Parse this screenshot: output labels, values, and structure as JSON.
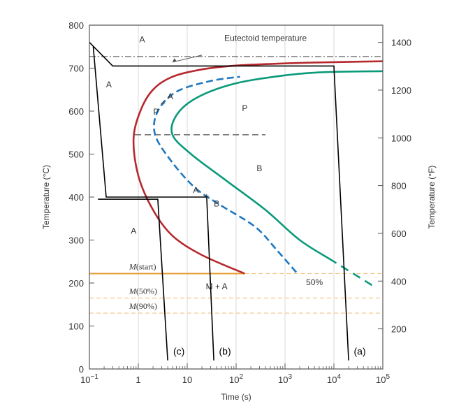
{
  "chart_data": {
    "type": "line",
    "xlabel": "Time (s)",
    "ylabel_left": "Temperature (°C)",
    "ylabel_right": "Temperature (°F)",
    "x_scale": "log",
    "xlim": [
      0.1,
      100000
    ],
    "ylim": [
      0,
      800
    ],
    "x_ticks": [
      {
        "value": 0.1,
        "base": "10",
        "exp": "−1"
      },
      {
        "value": 1,
        "base": "1",
        "exp": ""
      },
      {
        "value": 10,
        "base": "10",
        "exp": ""
      },
      {
        "value": 100,
        "base": "10",
        "exp": "2"
      },
      {
        "value": 1000,
        "base": "10",
        "exp": "3"
      },
      {
        "value": 10000,
        "base": "10",
        "exp": "4"
      },
      {
        "value": 100000,
        "base": "10",
        "exp": "5"
      }
    ],
    "y_ticks_left": [
      0,
      100,
      200,
      300,
      400,
      500,
      600,
      700,
      800
    ],
    "y_ticks_right_F": [
      200,
      400,
      600,
      800,
      1000,
      1200,
      1400
    ],
    "eutectoid": {
      "label": "Eutectoid temperature",
      "temp_c": 727
    },
    "series": [
      {
        "id": "start",
        "color": "#b5292f",
        "style": "solid",
        "points": [
          [
            150,
            222
          ],
          [
            20,
            265
          ],
          [
            5,
            310
          ],
          [
            2,
            370
          ],
          [
            1,
            450
          ],
          [
            0.8,
            535
          ],
          [
            1.1,
            600
          ],
          [
            2,
            650
          ],
          [
            5,
            680
          ],
          [
            20,
            697
          ],
          [
            100,
            706
          ],
          [
            1000,
            711
          ],
          [
            10000,
            714
          ],
          [
            100000,
            716
          ]
        ]
      },
      {
        "id": "fifty",
        "color": "#1f78c1",
        "style": "dashed",
        "points": [
          [
            1700,
            225
          ],
          [
            700,
            275
          ],
          [
            250,
            330
          ],
          [
            50,
            380
          ],
          [
            15,
            420
          ],
          [
            5,
            480
          ],
          [
            2.2,
            545
          ],
          [
            2.5,
            600
          ],
          [
            6,
            645
          ],
          [
            30,
            670
          ],
          [
            120,
            680
          ]
        ]
      },
      {
        "id": "finish",
        "color": "#0a9a7a",
        "style": "solid",
        "points": [
          [
            60000,
            195
          ],
          [
            10000,
            250
          ],
          [
            2000,
            300
          ],
          [
            400,
            370
          ],
          [
            60,
            440
          ],
          [
            12,
            500
          ],
          [
            5,
            545
          ],
          [
            6,
            590
          ],
          [
            15,
            630
          ],
          [
            80,
            662
          ],
          [
            600,
            680
          ],
          [
            5000,
            690
          ],
          [
            100000,
            693
          ]
        ]
      }
    ],
    "m_lines": [
      {
        "label_it": "M",
        "label_rest": "(start)",
        "temp_c": 222,
        "solid_to": 150
      },
      {
        "label_it": "M",
        "label_rest": "(50%)",
        "temp_c": 165
      },
      {
        "label_it": "M",
        "label_rest": "(90%)",
        "temp_c": 130
      }
    ],
    "fifty_label": "50%",
    "isothermal_line_c": 545,
    "regions": [
      {
        "text": "A",
        "x": 1.2,
        "y": 760
      },
      {
        "text": "A",
        "x": 0.25,
        "y": 655
      },
      {
        "text": "P",
        "x": 150,
        "y": 600
      },
      {
        "text": "B",
        "x": 300,
        "y": 460
      },
      {
        "text": "A",
        "x": 0.8,
        "y": 315
      },
      {
        "text": "M + A",
        "x": 40,
        "y": 185
      }
    ],
    "transition_labels": {
      "upper": [
        "A",
        "+",
        "P"
      ],
      "lower": [
        "A",
        "+",
        "B"
      ]
    },
    "paths": [
      {
        "label": "(a)",
        "points": [
          [
            0.1,
            760
          ],
          [
            0.3,
            705
          ],
          [
            10000,
            705
          ],
          [
            20000,
            20
          ]
        ]
      },
      {
        "label": "(b)",
        "points": [
          [
            0.12,
            750
          ],
          [
            0.22,
            400
          ],
          [
            25,
            400
          ],
          [
            35,
            20
          ]
        ]
      },
      {
        "label": "(c)",
        "points": [
          [
            0.15,
            395
          ],
          [
            2.5,
            395
          ],
          [
            4,
            20
          ]
        ]
      }
    ]
  }
}
